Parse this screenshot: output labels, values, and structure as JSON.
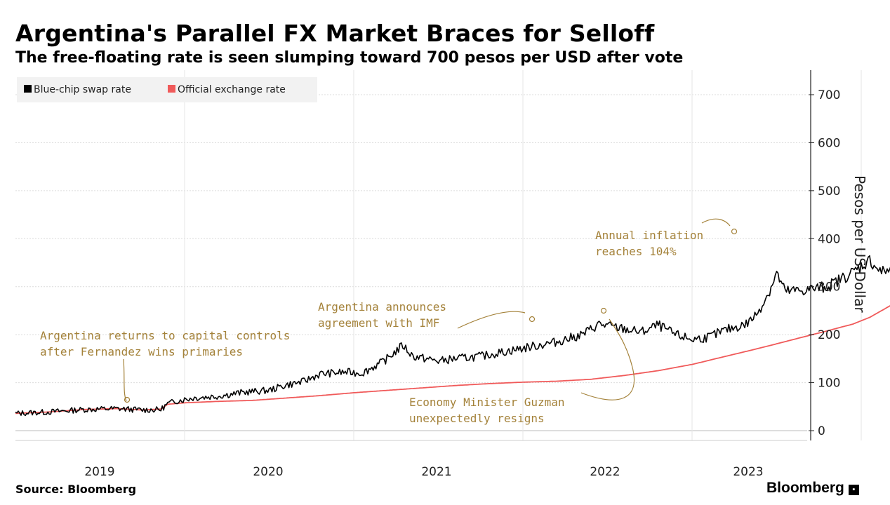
{
  "title": "Argentina's Parallel FX Market Braces for Selloff",
  "subtitle": "The free-floating rate is seen slumping toward 700 pesos per USD after vote",
  "source": "Source: Bloomberg",
  "brand": "Bloomberg",
  "colors": {
    "blue_chip": "#000000",
    "official": "#f05a5a",
    "annotation": "#a4823a",
    "grid": "#d9d9d9"
  },
  "chart_data": {
    "type": "line",
    "ylabel": "Pesos per US Dollar",
    "ylim": [
      0,
      700
    ],
    "yticks": [
      0,
      100,
      200,
      300,
      400,
      500,
      600,
      700
    ],
    "xticks": [
      "2019",
      "2020",
      "2021",
      "2022",
      "2023"
    ],
    "xlim": [
      2018.5,
      2023.72
    ],
    "grid": true,
    "legend_position": "top-left",
    "series": [
      {
        "name": "Blue-chip swap rate",
        "color": "#000000",
        "points": [
          [
            2018.5,
            36
          ],
          [
            2018.7,
            39
          ],
          [
            2018.9,
            44
          ],
          [
            2019.1,
            46
          ],
          [
            2019.25,
            43
          ],
          [
            2019.36,
            44
          ],
          [
            2019.4,
            56
          ],
          [
            2019.45,
            62
          ],
          [
            2019.55,
            68
          ],
          [
            2019.7,
            72
          ],
          [
            2019.85,
            80
          ],
          [
            2020.0,
            84
          ],
          [
            2020.1,
            95
          ],
          [
            2020.2,
            102
          ],
          [
            2020.3,
            118
          ],
          [
            2020.45,
            122
          ],
          [
            2020.55,
            120
          ],
          [
            2020.68,
            145
          ],
          [
            2020.79,
            178
          ],
          [
            2020.85,
            155
          ],
          [
            2021.0,
            145
          ],
          [
            2021.1,
            150
          ],
          [
            2021.25,
            155
          ],
          [
            2021.4,
            165
          ],
          [
            2021.55,
            175
          ],
          [
            2021.7,
            185
          ],
          [
            2021.85,
            200
          ],
          [
            2021.95,
            222
          ],
          [
            2022.05,
            215
          ],
          [
            2022.2,
            205
          ],
          [
            2022.3,
            220
          ],
          [
            2022.4,
            200
          ],
          [
            2022.5,
            190
          ],
          [
            2022.6,
            195
          ],
          [
            2022.7,
            210
          ],
          [
            2022.82,
            222
          ],
          [
            2022.88,
            242
          ],
          [
            2022.95,
            285
          ],
          [
            2023.0,
            328
          ],
          [
            2023.05,
            290
          ],
          [
            2023.15,
            292
          ],
          [
            2023.3,
            300
          ],
          [
            2023.45,
            330
          ],
          [
            2023.55,
            355
          ],
          [
            2023.62,
            330
          ],
          [
            2023.72,
            342
          ]
        ]
      },
      {
        "name": "Official exchange rate",
        "color": "#f05a5a",
        "points": [
          [
            2018.5,
            36
          ],
          [
            2018.7,
            39
          ],
          [
            2018.9,
            44
          ],
          [
            2019.1,
            46
          ],
          [
            2019.25,
            43
          ],
          [
            2019.36,
            45
          ],
          [
            2019.4,
            55
          ],
          [
            2019.5,
            58
          ],
          [
            2019.7,
            61
          ],
          [
            2019.9,
            63
          ],
          [
            2020.1,
            68
          ],
          [
            2020.3,
            73
          ],
          [
            2020.5,
            79
          ],
          [
            2020.7,
            84
          ],
          [
            2020.9,
            89
          ],
          [
            2021.1,
            94
          ],
          [
            2021.3,
            98
          ],
          [
            2021.5,
            101
          ],
          [
            2021.7,
            103
          ],
          [
            2021.9,
            107
          ],
          [
            2022.1,
            115
          ],
          [
            2022.3,
            125
          ],
          [
            2022.5,
            138
          ],
          [
            2022.7,
            155
          ],
          [
            2022.9,
            172
          ],
          [
            2023.1,
            190
          ],
          [
            2023.3,
            208
          ],
          [
            2023.45,
            222
          ],
          [
            2023.55,
            236
          ],
          [
            2023.62,
            250
          ],
          [
            2023.68,
            262
          ],
          [
            2023.72,
            268
          ]
        ]
      }
    ],
    "annotations": [
      {
        "lines": [
          "Argentina returns to capital controls",
          "after Fernandez wins primaries"
        ]
      },
      {
        "lines": [
          "Argentina announces",
          "agreement with IMF"
        ]
      },
      {
        "lines": [
          "Economy Minister Guzman",
          "unexpectedly resigns"
        ]
      },
      {
        "lines": [
          "Annual inflation",
          "reaches 104%"
        ]
      }
    ]
  }
}
